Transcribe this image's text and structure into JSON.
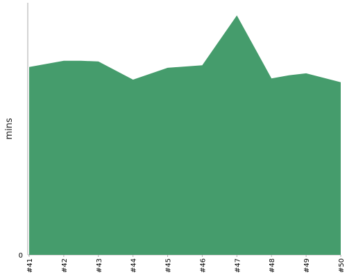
{
  "chart_data": {
    "type": "area",
    "title": "",
    "xlabel": "",
    "ylabel": "mins",
    "categories": [
      "#41",
      "#42",
      "#43",
      "#44",
      "#45",
      "#46",
      "#47",
      "#48",
      "#49",
      "#50"
    ],
    "x": [
      41,
      42,
      42.5,
      43,
      44,
      45,
      46,
      47,
      48,
      48.5,
      49,
      50
    ],
    "values": [
      74.5,
      77.0,
      77.0,
      76.7,
      69.5,
      74.2,
      75.2,
      95.0,
      70.0,
      71.2,
      72.0,
      68.5
    ],
    "ylim": [
      0,
      100
    ],
    "y_ticks": [
      0
    ],
    "colors": {
      "area": "#459c6c",
      "axis": "#aaaaaa"
    },
    "grid": false,
    "legend": "none"
  }
}
